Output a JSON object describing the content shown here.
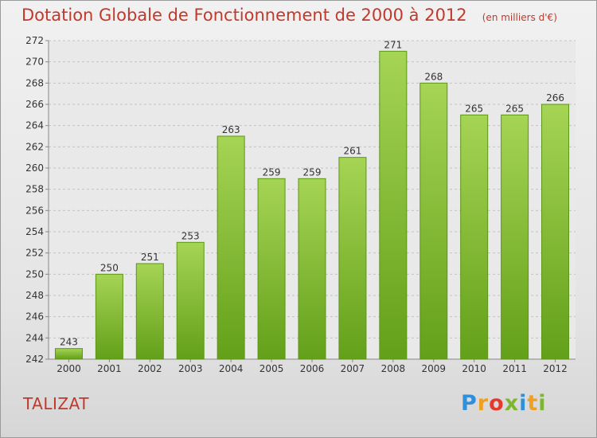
{
  "title": "Dotation Globale de Fonctionnement de 2000 à 2012",
  "subtitle": "(en milliers d'€)",
  "commune": "TALIZAT",
  "logo": {
    "letters": [
      "P",
      "r",
      "o",
      "x",
      "i",
      "t",
      "i"
    ]
  },
  "colors": {
    "title": "#c0392b",
    "bar_light": "#a6d455",
    "bar_dark": "#63a019",
    "bar_border": "#5c9616"
  },
  "chart_data": {
    "type": "bar",
    "title": "Dotation Globale de Fonctionnement de 2000 à 2012",
    "subtitle": "(en milliers d'€)",
    "categories": [
      "2000",
      "2001",
      "2002",
      "2003",
      "2004",
      "2005",
      "2006",
      "2007",
      "2008",
      "2009",
      "2010",
      "2011",
      "2012"
    ],
    "values": [
      243,
      250,
      251,
      253,
      263,
      259,
      259,
      261,
      271,
      268,
      265,
      265,
      266
    ],
    "data_labels": [
      "243",
      "250",
      "251",
      "253",
      "263",
      "259",
      "259",
      "261",
      "271",
      "268",
      "265",
      "265",
      "266"
    ],
    "y_ticks": [
      "242",
      "244",
      "246",
      "248",
      "250",
      "252",
      "254",
      "256",
      "258",
      "260",
      "262",
      "264",
      "266",
      "268",
      "270",
      "272"
    ],
    "ylim": [
      242,
      272
    ],
    "grid": true,
    "legend": "none"
  }
}
